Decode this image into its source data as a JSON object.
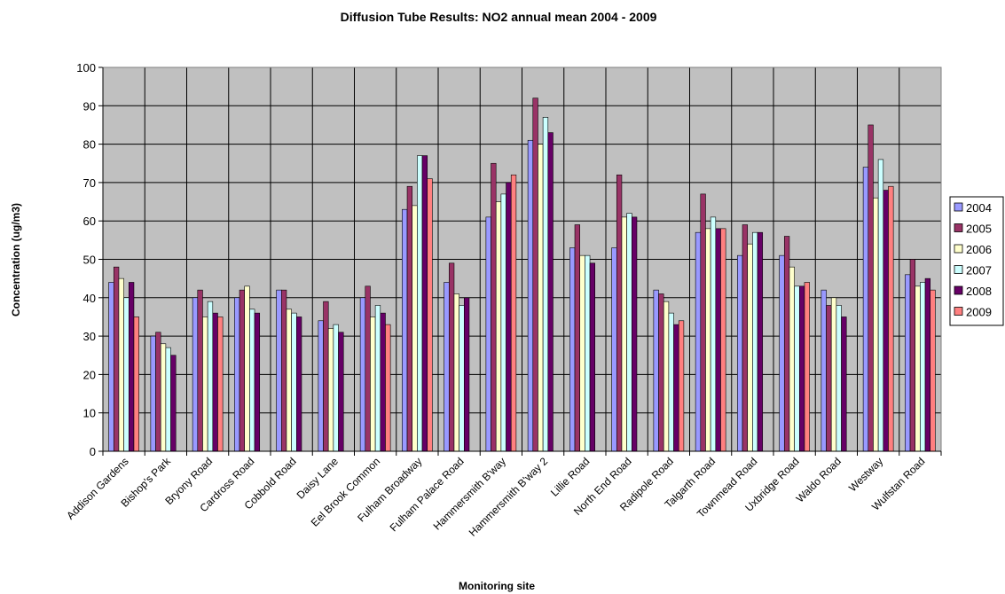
{
  "chart_data": {
    "type": "bar",
    "title": "Diffusion Tube Results: NO2 annual mean 2004 - 2009",
    "xlabel": "Monitoring site",
    "ylabel": "Concentration (ug/m3)",
    "ylim": [
      0,
      100
    ],
    "yticks": [
      "0",
      "10",
      "20",
      "30",
      "40",
      "50",
      "60",
      "70",
      "80",
      "90",
      "100"
    ],
    "grid": true,
    "legend_position": "right",
    "plot_background": "#c0c0c0",
    "categories": [
      "Addison Gardens",
      "Bishop's Park",
      "Bryony Road",
      "Cardross Road",
      "Cobbold Road",
      "Daisy Lane",
      "Eel Brook Common",
      "Fulham Broadway",
      "Fulham Palace Road",
      "Hammersmith B'way",
      "Hammersmith B'way 2",
      "Lillie Road",
      "North End Road",
      "Radipole Road",
      "Talgarth Road",
      "Townmead Road",
      "Uxbridge Road",
      "Waldo Road",
      "Westway",
      "Wulfstan Road"
    ],
    "series": [
      {
        "name": "2004",
        "color": "#9999ff",
        "values": [
          44,
          30,
          40,
          40,
          42,
          34,
          40,
          63,
          44,
          61,
          81,
          53,
          53,
          42,
          57,
          51,
          51,
          42,
          74,
          46
        ]
      },
      {
        "name": "2005",
        "color": "#993366",
        "values": [
          48,
          31,
          42,
          42,
          42,
          39,
          43,
          69,
          49,
          75,
          92,
          59,
          72,
          41,
          67,
          59,
          56,
          38,
          85,
          50
        ]
      },
      {
        "name": "2006",
        "color": "#ffffcc",
        "values": [
          45,
          28,
          35,
          43,
          37,
          32,
          35,
          64,
          41,
          65,
          80,
          51,
          61,
          39,
          58,
          54,
          48,
          40,
          66,
          43
        ]
      },
      {
        "name": "2007",
        "color": "#ccffff",
        "values": [
          40,
          27,
          39,
          37,
          36,
          33,
          38,
          77,
          38,
          67,
          87,
          51,
          62,
          36,
          61,
          57,
          43,
          38,
          76,
          44
        ]
      },
      {
        "name": "2008",
        "color": "#660066",
        "values": [
          44,
          25,
          36,
          36,
          35,
          31,
          36,
          77,
          40,
          70,
          83,
          49,
          61,
          33,
          58,
          57,
          43,
          35,
          68,
          45
        ]
      },
      {
        "name": "2009",
        "color": "#ff8080",
        "values": [
          35,
          null,
          35,
          null,
          null,
          null,
          33,
          71,
          null,
          72,
          null,
          null,
          null,
          34,
          58,
          null,
          44,
          null,
          69,
          42
        ]
      }
    ]
  }
}
